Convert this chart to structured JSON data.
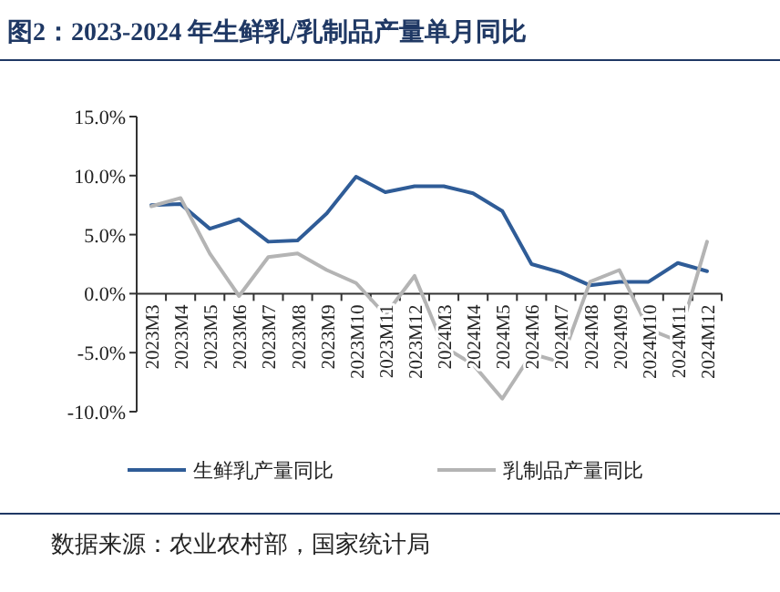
{
  "chart_data": {
    "type": "line",
    "title": "图2：2023-2024 年生鲜乳/乳制品产量单月同比",
    "categories": [
      "2023M3",
      "2023M4",
      "2023M5",
      "2023M6",
      "2023M7",
      "2023M8",
      "2023M9",
      "2023M10",
      "2023M11",
      "2023M12",
      "2024M3",
      "2024M4",
      "2024M5",
      "2024M6",
      "2024M7",
      "2024M8",
      "2024M9",
      "2024M10",
      "2024M11",
      "2024M12"
    ],
    "series": [
      {
        "name": "生鲜乳产量同比",
        "color": "#2f5c97",
        "values": [
          7.5,
          7.6,
          5.5,
          6.3,
          4.4,
          4.5,
          6.8,
          9.9,
          8.6,
          9.1,
          9.1,
          8.5,
          7.0,
          2.5,
          1.8,
          0.7,
          1.0,
          1.0,
          2.6,
          1.9
        ]
      },
      {
        "name": "乳制品产量同比",
        "color": "#b4b4b4",
        "values": [
          7.4,
          8.1,
          3.4,
          -0.2,
          3.1,
          3.4,
          2.0,
          0.9,
          -1.8,
          1.5,
          -4.5,
          -6.0,
          -8.9,
          -5.1,
          -5.8,
          1.0,
          2.0,
          -3.0,
          -4.0,
          4.4
        ]
      }
    ],
    "ylim": [
      -10,
      15
    ],
    "yticks": [
      {
        "value": -10,
        "label": "-10.0%"
      },
      {
        "value": -5,
        "label": "-5.0%"
      },
      {
        "value": 0,
        "label": "0.0%"
      },
      {
        "value": 5,
        "label": "5.0%"
      },
      {
        "value": 10,
        "label": "10.0%"
      },
      {
        "value": 15,
        "label": "15.0%"
      }
    ],
    "grid": false,
    "legend": "bottom",
    "marker": "none",
    "line_style": "solid",
    "annotations": [
      "数据来源：农业农村部，国家统计局"
    ]
  }
}
